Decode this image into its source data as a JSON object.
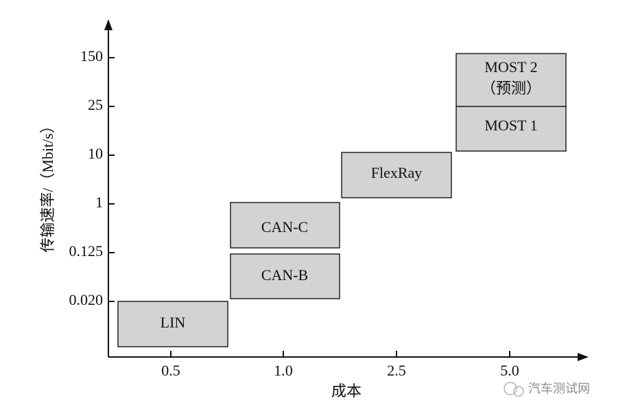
{
  "axes": {
    "y_label": "传输速率/（Mbit/s）",
    "x_label": "成本",
    "y_ticks": [
      "150",
      "25",
      "10",
      "1",
      "0.125",
      "0.020"
    ],
    "x_ticks": [
      "0.5",
      "1.0",
      "2.5",
      "5.0"
    ]
  },
  "boxes": [
    {
      "label": "LIN"
    },
    {
      "label": "CAN-B"
    },
    {
      "label": "CAN-C"
    },
    {
      "label": "FlexRay"
    },
    {
      "label": "MOST 1"
    },
    {
      "label": "MOST 2",
      "note": "（预测）"
    }
  ],
  "watermark": "汽车测试网"
}
